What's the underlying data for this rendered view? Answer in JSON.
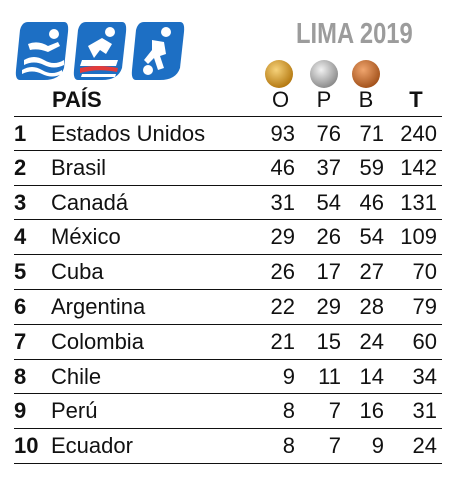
{
  "event": {
    "title": "LIMA 2019"
  },
  "icons": [
    {
      "name": "water-sport-pictogram-icon",
      "color": "#1d6fc4"
    },
    {
      "name": "cycling-pictogram-icon",
      "color": "#1d6fc4"
    },
    {
      "name": "football-pictogram-icon",
      "color": "#1d6fc4"
    }
  ],
  "medals": [
    {
      "name": "gold-medal-icon",
      "color": "#d39a2a"
    },
    {
      "name": "silver-medal-icon",
      "color": "#b5b5b5"
    },
    {
      "name": "bronze-medal-icon",
      "color": "#c8743a"
    }
  ],
  "header": {
    "country": "PAÍS",
    "gold": "O",
    "silver": "P",
    "bronze": "B",
    "total": "T"
  },
  "rows": [
    {
      "rank": "1",
      "country": "Estados Unidos",
      "gold": "93",
      "silver": "76",
      "bronze": "71",
      "total": "240"
    },
    {
      "rank": "2",
      "country": "Brasil",
      "gold": "46",
      "silver": "37",
      "bronze": "59",
      "total": "142"
    },
    {
      "rank": "3",
      "country": "Canadá",
      "gold": "31",
      "silver": "54",
      "bronze": "46",
      "total": "131"
    },
    {
      "rank": "4",
      "country": "México",
      "gold": "29",
      "silver": "26",
      "bronze": "54",
      "total": "109"
    },
    {
      "rank": "5",
      "country": "Cuba",
      "gold": "26",
      "silver": "17",
      "bronze": "27",
      "total": "70"
    },
    {
      "rank": "6",
      "country": "Argentina",
      "gold": "22",
      "silver": "29",
      "bronze": "28",
      "total": "79"
    },
    {
      "rank": "7",
      "country": "Colombia",
      "gold": "21",
      "silver": "15",
      "bronze": "24",
      "total": "60"
    },
    {
      "rank": "8",
      "country": "Chile",
      "gold": "9",
      "silver": "11",
      "bronze": "14",
      "total": "34"
    },
    {
      "rank": "9",
      "country": "Perú",
      "gold": "8",
      "silver": "7",
      "bronze": "16",
      "total": "31"
    },
    {
      "rank": "10",
      "country": "Ecuador",
      "gold": "8",
      "silver": "7",
      "bronze": "9",
      "total": "24"
    }
  ]
}
